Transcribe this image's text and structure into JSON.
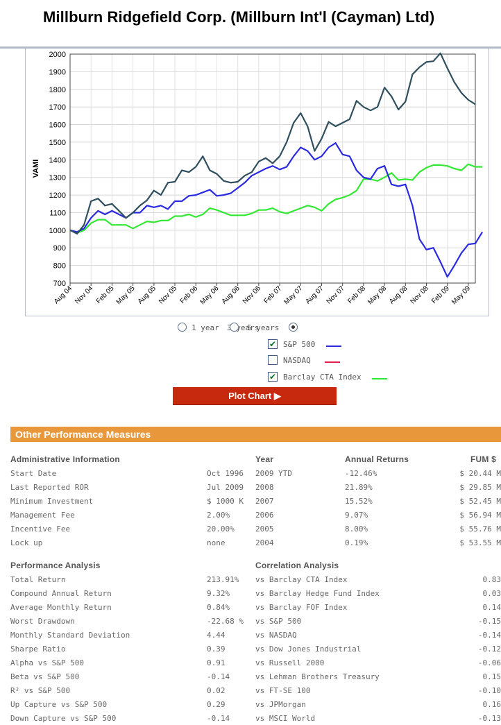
{
  "page": {
    "title": "Millburn Ridgefield Corp. (Millburn Int'l (Cayman) Ltd)"
  },
  "chart_data": {
    "type": "line",
    "ylabel": "VAMI",
    "ylim": [
      700,
      2000
    ],
    "yticks": [
      700,
      800,
      900,
      1000,
      1100,
      1200,
      1300,
      1400,
      1500,
      1600,
      1700,
      1800,
      1900,
      2000
    ],
    "xtick_labels": [
      "Aug 04",
      "Nov 04",
      "Feb 05",
      "May 05",
      "Aug 05",
      "Nov 05",
      "Feb 06",
      "May 06",
      "Aug 06",
      "Nov 06",
      "Feb 07",
      "May 07",
      "Aug 07",
      "Nov 07",
      "Feb 08",
      "May 08",
      "Aug 08",
      "Nov 08",
      "Feb 09",
      "May 09"
    ],
    "x_start": "2004-08",
    "grid": true,
    "series": [
      {
        "name": "Millburn Int'l (Cayman) Ltd",
        "color": "#2f4f5f",
        "values": [
          1000,
          980,
          1030,
          1165,
          1180,
          1140,
          1150,
          1110,
          1070,
          1100,
          1140,
          1170,
          1225,
          1200,
          1270,
          1275,
          1340,
          1330,
          1360,
          1420,
          1340,
          1320,
          1280,
          1270,
          1275,
          1310,
          1330,
          1390,
          1410,
          1380,
          1420,
          1500,
          1610,
          1665,
          1590,
          1450,
          1520,
          1615,
          1590,
          1610,
          1630,
          1735,
          1700,
          1680,
          1700,
          1810,
          1760,
          1685,
          1730,
          1885,
          1925,
          1955,
          1960,
          2005,
          1920,
          1840,
          1780,
          1740,
          1715
        ]
      },
      {
        "name": "S&P 500",
        "color": "#2a2ae0",
        "values": [
          1000,
          990,
          1010,
          1070,
          1110,
          1090,
          1110,
          1090,
          1070,
          1100,
          1100,
          1140,
          1130,
          1140,
          1120,
          1165,
          1165,
          1195,
          1200,
          1215,
          1230,
          1195,
          1200,
          1210,
          1240,
          1270,
          1310,
          1330,
          1350,
          1365,
          1345,
          1360,
          1420,
          1470,
          1450,
          1400,
          1420,
          1470,
          1495,
          1430,
          1420,
          1340,
          1300,
          1290,
          1350,
          1365,
          1260,
          1250,
          1260,
          1140,
          950,
          890,
          900,
          820,
          735,
          800,
          870,
          920,
          925,
          990
        ]
      },
      {
        "name": "Barclay CTA Index",
        "color": "#33e833",
        "values": [
          1000,
          985,
          1000,
          1040,
          1060,
          1060,
          1030,
          1030,
          1030,
          1010,
          1030,
          1050,
          1045,
          1055,
          1055,
          1080,
          1080,
          1090,
          1075,
          1090,
          1125,
          1115,
          1100,
          1085,
          1085,
          1085,
          1095,
          1115,
          1115,
          1125,
          1105,
          1095,
          1110,
          1125,
          1140,
          1130,
          1110,
          1150,
          1175,
          1185,
          1200,
          1225,
          1290,
          1290,
          1280,
          1300,
          1325,
          1285,
          1290,
          1285,
          1330,
          1355,
          1370,
          1370,
          1365,
          1350,
          1340,
          1375,
          1360,
          1360
        ]
      }
    ]
  },
  "controls": {
    "periods": [
      {
        "label": "1 year",
        "selected": false
      },
      {
        "label": "3 years",
        "selected": false
      },
      {
        "label": "5 years",
        "selected": true
      }
    ],
    "benchmarks": [
      {
        "label": "S&P 500",
        "checked": true,
        "color": "#2a2ae0"
      },
      {
        "label": "NASDAQ",
        "checked": false,
        "color": "#e0224a"
      },
      {
        "label": "Barclay CTA Index",
        "checked": true,
        "color": "#33e833"
      }
    ],
    "plot_button": "Plot Chart ▶"
  },
  "section_title": "Other Performance Measures",
  "admin": {
    "header": "Administrative Information",
    "rows": [
      {
        "label": "Start Date",
        "value": "Oct 1996"
      },
      {
        "label": "Last Reported ROR",
        "value": "Jul 2009"
      },
      {
        "label": "Minimum Investment",
        "value": "$ 1000 K"
      },
      {
        "label": "Management Fee",
        "value": "2.00%"
      },
      {
        "label": "Incentive Fee",
        "value": "20.00%"
      },
      {
        "label": "Lock up",
        "value": "none"
      }
    ]
  },
  "annual": {
    "headers": {
      "year": "Year",
      "returns": "Annual Returns",
      "fum": "FUM $"
    },
    "rows": [
      {
        "year": "2009 YTD",
        "ret": "-12.46%",
        "fum": "$ 20.44 M"
      },
      {
        "year": "2008",
        "ret": "21.89%",
        "fum": "$ 29.85 M"
      },
      {
        "year": "2007",
        "ret": "15.52%",
        "fum": "$ 52.45 M"
      },
      {
        "year": "2006",
        "ret": "9.07%",
        "fum": "$ 56.94 M"
      },
      {
        "year": "2005",
        "ret": "8.00%",
        "fum": "$ 55.76 M"
      },
      {
        "year": "2004",
        "ret": "0.19%",
        "fum": "$ 53.55 M"
      }
    ]
  },
  "performance": {
    "header": "Performance Analysis",
    "rows": [
      {
        "label": "Total Return",
        "value": "213.91%"
      },
      {
        "label": "Compound Annual Return",
        "value": "9.32%"
      },
      {
        "label": "Average Monthly Return",
        "value": "0.84%"
      },
      {
        "label": "Worst Drawdown",
        "value": "-22.68 %"
      },
      {
        "label": "Monthly Standard Deviation",
        "value": "4.44"
      },
      {
        "label": "Sharpe Ratio",
        "value": "0.39"
      },
      {
        "label": "Alpha vs S&P 500",
        "value": "0.91"
      },
      {
        "label": "Beta vs S&P 500",
        "value": "-0.14"
      },
      {
        "label": "R² vs S&P 500",
        "value": "0.02"
      },
      {
        "label": "Up Capture vs S&P 500",
        "value": "0.29"
      },
      {
        "label": "Down Capture vs S&P 500",
        "value": "-0.14"
      }
    ]
  },
  "correlation": {
    "header": "Correlation Analysis",
    "rows": [
      {
        "label": "vs Barclay CTA Index",
        "value": "0.83"
      },
      {
        "label": "vs Barclay Hedge Fund Index",
        "value": "0.03"
      },
      {
        "label": "vs Barclay FOF Index",
        "value": "0.14"
      },
      {
        "label": "vs S&P 500",
        "value": "-0.15"
      },
      {
        "label": "vs NASDAQ",
        "value": "-0.14"
      },
      {
        "label": "vs Dow Jones Industrial",
        "value": "-0.12"
      },
      {
        "label": "vs Russell 2000",
        "value": "-0.06"
      },
      {
        "label": "vs Lehman Brothers Treasury",
        "value": "0.15"
      },
      {
        "label": "vs FT-SE 100",
        "value": "-0.10"
      },
      {
        "label": "vs JPMorgan",
        "value": "0.16"
      },
      {
        "label": "vs MSCI World",
        "value": "-0.13"
      }
    ]
  }
}
